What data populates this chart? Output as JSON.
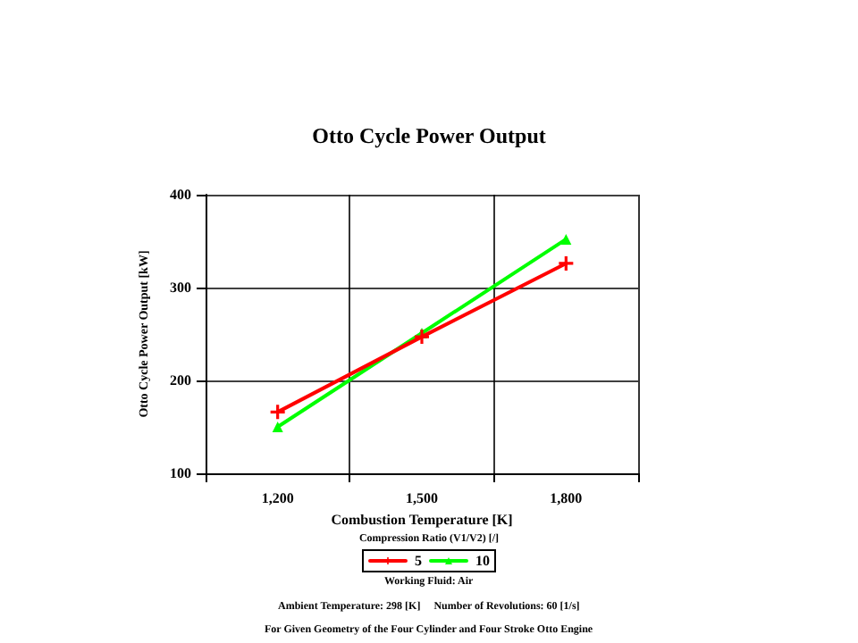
{
  "chart_data": {
    "type": "line",
    "title": "Otto Cycle Power Output",
    "xlabel": "Combustion Temperature [K]",
    "ylabel": "Otto Cycle Power Output [kW]",
    "legend_title": "Compression Ratio (V1/V2) [/]",
    "categories": [
      "1,200",
      "1,500",
      "1,800"
    ],
    "series": [
      {
        "name": "5",
        "color": "#ff0000",
        "marker": "cross",
        "values": [
          166,
          247,
          326
        ]
      },
      {
        "name": "10",
        "color": "#00ff00",
        "marker": "triangle",
        "values": [
          150,
          251,
          352
        ]
      }
    ],
    "ylim": [
      100,
      400
    ],
    "yticks": [
      100,
      200,
      300,
      400
    ],
    "grid": true,
    "legend": "bottom",
    "line_style": "solid",
    "annotations": [
      "Working Fluid: Air",
      "Ambient Temperature: 298 [K]     Number of Revolutions: 60 [1/s]",
      "For Given Geometry of the Four Cylinder and Four Stroke Otto Engine"
    ]
  }
}
